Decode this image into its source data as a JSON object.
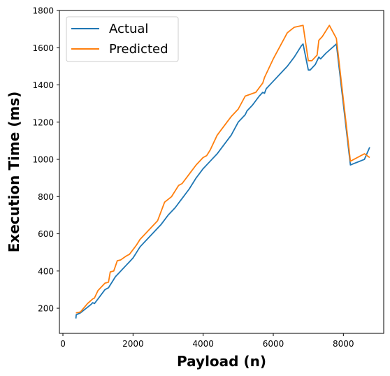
{
  "chart_data": {
    "type": "line",
    "title": "",
    "xlabel": "Payload (n)",
    "ylabel": "Execution Time (ms)",
    "xlim": [
      -100,
      9150
    ],
    "ylim": [
      65,
      1800
    ],
    "xticks": [
      0,
      2000,
      4000,
      6000,
      8000
    ],
    "yticks": [
      200,
      400,
      600,
      800,
      1000,
      1200,
      1400,
      1600,
      1800
    ],
    "grid": false,
    "legend": "top-left",
    "series": [
      {
        "name": "Actual",
        "color": "#1f77b4",
        "points": [
          [
            370,
            145
          ],
          [
            380,
            165
          ],
          [
            500,
            175
          ],
          [
            600,
            190
          ],
          [
            700,
            205
          ],
          [
            800,
            220
          ],
          [
            850,
            230
          ],
          [
            900,
            225
          ],
          [
            1000,
            250
          ],
          [
            1100,
            275
          ],
          [
            1200,
            300
          ],
          [
            1300,
            310
          ],
          [
            1400,
            340
          ],
          [
            1500,
            370
          ],
          [
            1600,
            390
          ],
          [
            1700,
            410
          ],
          [
            1800,
            430
          ],
          [
            1900,
            450
          ],
          [
            2000,
            470
          ],
          [
            2100,
            500
          ],
          [
            2200,
            530
          ],
          [
            2400,
            570
          ],
          [
            2600,
            610
          ],
          [
            2800,
            650
          ],
          [
            3000,
            700
          ],
          [
            3200,
            740
          ],
          [
            3400,
            790
          ],
          [
            3600,
            840
          ],
          [
            3800,
            900
          ],
          [
            4000,
            950
          ],
          [
            4200,
            990
          ],
          [
            4400,
            1030
          ],
          [
            4600,
            1080
          ],
          [
            4800,
            1130
          ],
          [
            5000,
            1200
          ],
          [
            5200,
            1240
          ],
          [
            5250,
            1260
          ],
          [
            5400,
            1290
          ],
          [
            5600,
            1340
          ],
          [
            5700,
            1360
          ],
          [
            5750,
            1355
          ],
          [
            5800,
            1380
          ],
          [
            6000,
            1420
          ],
          [
            6200,
            1460
          ],
          [
            6400,
            1500
          ],
          [
            6600,
            1550
          ],
          [
            6800,
            1610
          ],
          [
            6850,
            1620
          ],
          [
            7000,
            1480
          ],
          [
            7050,
            1480
          ],
          [
            7200,
            1510
          ],
          [
            7300,
            1550
          ],
          [
            7350,
            1540
          ],
          [
            7500,
            1570
          ],
          [
            7800,
            1620
          ],
          [
            8200,
            970
          ],
          [
            8600,
            1000
          ],
          [
            8750,
            1065
          ]
        ]
      },
      {
        "name": "Predicted",
        "color": "#ff7f0e",
        "points": [
          [
            370,
            175
          ],
          [
            500,
            180
          ],
          [
            700,
            225
          ],
          [
            850,
            250
          ],
          [
            900,
            255
          ],
          [
            1000,
            295
          ],
          [
            1200,
            335
          ],
          [
            1300,
            340
          ],
          [
            1350,
            395
          ],
          [
            1450,
            400
          ],
          [
            1550,
            455
          ],
          [
            1650,
            460
          ],
          [
            1800,
            480
          ],
          [
            1900,
            490
          ],
          [
            2100,
            540
          ],
          [
            2200,
            570
          ],
          [
            2400,
            610
          ],
          [
            2700,
            670
          ],
          [
            2900,
            770
          ],
          [
            3100,
            800
          ],
          [
            3300,
            860
          ],
          [
            3400,
            870
          ],
          [
            3600,
            920
          ],
          [
            3800,
            970
          ],
          [
            4000,
            1010
          ],
          [
            4100,
            1020
          ],
          [
            4200,
            1050
          ],
          [
            4400,
            1130
          ],
          [
            4600,
            1180
          ],
          [
            4800,
            1230
          ],
          [
            5000,
            1270
          ],
          [
            5200,
            1340
          ],
          [
            5500,
            1360
          ],
          [
            5700,
            1410
          ],
          [
            5750,
            1440
          ],
          [
            6000,
            1540
          ],
          [
            6200,
            1610
          ],
          [
            6400,
            1680
          ],
          [
            6600,
            1710
          ],
          [
            6850,
            1720
          ],
          [
            7000,
            1530
          ],
          [
            7100,
            1530
          ],
          [
            7250,
            1560
          ],
          [
            7300,
            1640
          ],
          [
            7400,
            1660
          ],
          [
            7600,
            1720
          ],
          [
            7800,
            1650
          ],
          [
            8200,
            990
          ],
          [
            8600,
            1030
          ],
          [
            8750,
            1010
          ]
        ]
      }
    ]
  }
}
